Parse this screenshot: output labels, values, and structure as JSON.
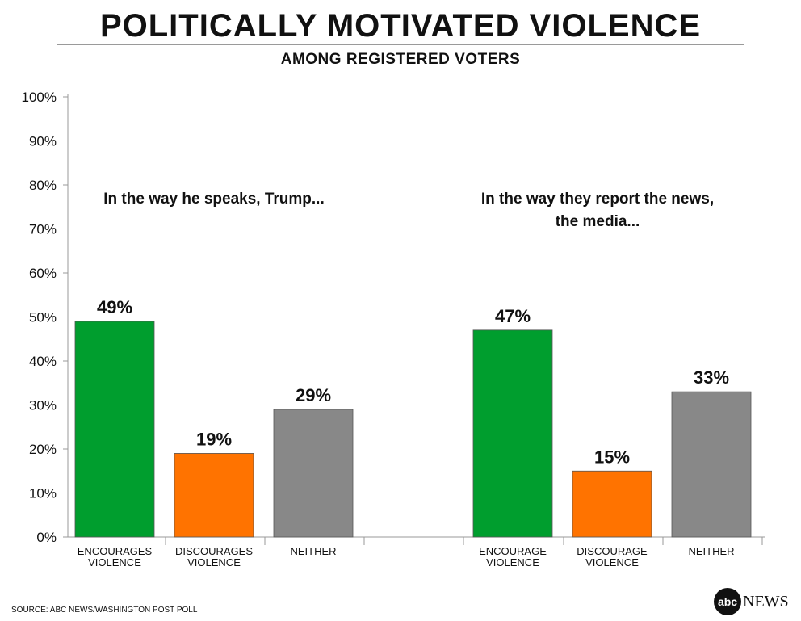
{
  "title": "POLITICALLY MOTIVATED VIOLENCE",
  "subtitle": "AMONG REGISTERED VOTERS",
  "source": "SOURCE: ABC NEWS/WASHINGTON POST POLL",
  "logo": {
    "mark": "abc",
    "text": "NEWS"
  },
  "chart_data": {
    "type": "bar",
    "y_ticks": [
      "100%",
      "90%",
      "80%",
      "70%",
      "60%",
      "50%",
      "40%",
      "30%",
      "20%",
      "10%",
      "0%"
    ],
    "ylim": [
      0,
      100
    ],
    "groups": [
      {
        "heading": [
          "In the way he speaks, Trump..."
        ],
        "bars": [
          {
            "category": [
              "ENCOURAGES",
              "VIOLENCE"
            ],
            "value": 49,
            "label": "49%",
            "color": "#009e2e"
          },
          {
            "category": [
              "DISCOURAGES",
              "VIOLENCE"
            ],
            "value": 19,
            "label": "19%",
            "color": "#ff7300"
          },
          {
            "category": [
              "NEITHER"
            ],
            "value": 29,
            "label": "29%",
            "color": "#888888"
          }
        ]
      },
      {
        "heading": [
          "In the way they report the news,",
          "the media..."
        ],
        "bars": [
          {
            "category": [
              "ENCOURAGE",
              "VIOLENCE"
            ],
            "value": 47,
            "label": "47%",
            "color": "#009e2e"
          },
          {
            "category": [
              "DISCOURAGE",
              "VIOLENCE"
            ],
            "value": 15,
            "label": "15%",
            "color": "#ff7300"
          },
          {
            "category": [
              "NEITHER"
            ],
            "value": 33,
            "label": "33%",
            "color": "#888888"
          }
        ]
      }
    ]
  }
}
